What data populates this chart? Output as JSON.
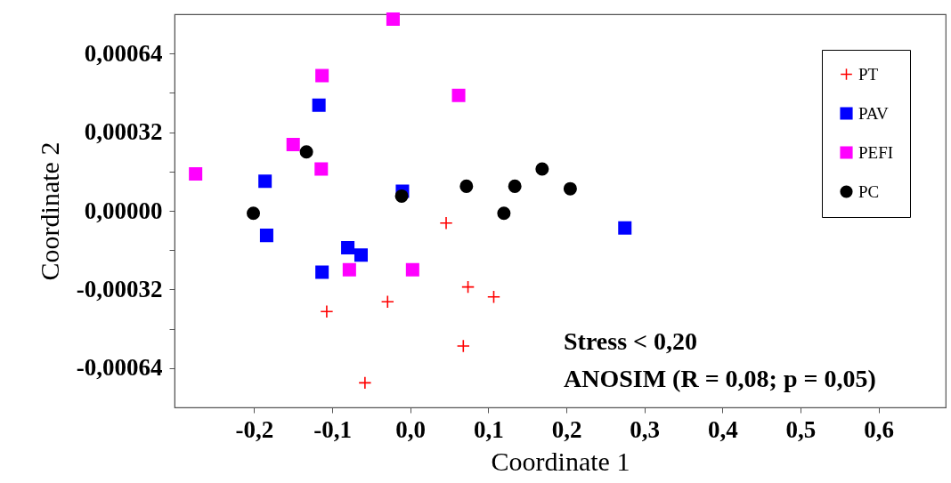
{
  "chart_data": {
    "type": "scatter",
    "xlabel": "Coordinate 1",
    "ylabel": "Coordinate 2",
    "xlim": [
      -0.302,
      0.686
    ],
    "ylim": [
      -0.0008,
      0.0008
    ],
    "xticks": [
      {
        "value": -0.2,
        "label": "-0,2"
      },
      {
        "value": -0.1,
        "label": "-0,1"
      },
      {
        "value": 0,
        "label": "0,0"
      },
      {
        "value": 0.1,
        "label": "0,1"
      },
      {
        "value": 0.2,
        "label": "0,2"
      },
      {
        "value": 0.3,
        "label": "0,3"
      },
      {
        "value": 0.4,
        "label": "0,4"
      },
      {
        "value": 0.5,
        "label": "0,5"
      },
      {
        "value": 0.6,
        "label": "0,6"
      }
    ],
    "yticks": [
      {
        "value": -0.00064,
        "label": "-0,00064"
      },
      {
        "value": -0.00048,
        "label": null
      },
      {
        "value": -0.00032,
        "label": "-0,00032"
      },
      {
        "value": -0.00016,
        "label": null
      },
      {
        "value": 0,
        "label": "0,00000"
      },
      {
        "value": 0.00016,
        "label": null
      },
      {
        "value": 0.00032,
        "label": "0,00032"
      },
      {
        "value": 0.00048,
        "label": null
      },
      {
        "value": 0.00064,
        "label": "0,00064"
      }
    ],
    "legend": "top right",
    "grid": false,
    "annotations": [
      "Stress < 0,20",
      "ANOSIM (R = 0,08; p = 0,05)"
    ],
    "series": [
      {
        "name": "PT",
        "color": "#ff0000",
        "marker": "cross",
        "x": [
          0.046,
          0.074,
          0.107,
          -0.029,
          0.068,
          -0.107,
          -0.058
        ],
        "values": [
          -5e-05,
          -0.00031,
          -0.00035,
          -0.00037,
          -0.00055,
          -0.00041,
          -0.0007
        ]
      },
      {
        "name": "PAV",
        "color": "#0000ff",
        "marker": "square",
        "x": [
          -0.117,
          -0.186,
          -0.01,
          -0.184,
          -0.08,
          -0.063,
          -0.113,
          0.275
        ],
        "values": [
          0.00043,
          0.00012,
          8e-05,
          -0.0001,
          -0.00015,
          -0.00018,
          -0.00025,
          -7e-05
        ]
      },
      {
        "name": "PEFI",
        "color": "#ff00ff",
        "marker": "square",
        "x": [
          -0.022,
          -0.113,
          0.062,
          -0.15,
          -0.114,
          -0.275,
          -0.078,
          0.003
        ],
        "values": [
          0.00078,
          0.00055,
          0.00047,
          0.00027,
          0.00017,
          0.00015,
          -0.00024,
          -0.00024
        ]
      },
      {
        "name": "PC",
        "color": "#000000",
        "marker": "circle",
        "x": [
          -0.133,
          -0.201,
          -0.011,
          0.072,
          0.134,
          0.169,
          0.205,
          0.12
        ],
        "values": [
          0.00024,
          -1e-05,
          6e-05,
          0.0001,
          0.0001,
          0.00017,
          9e-05,
          -1e-05
        ]
      }
    ]
  }
}
